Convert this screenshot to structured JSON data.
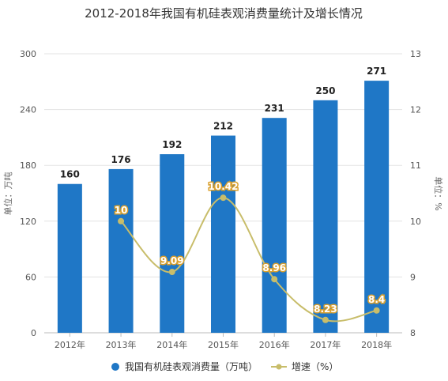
{
  "chart_data": {
    "type": "bar",
    "title": "2012-2018年我国有机硅表观消费量统计及增长情况",
    "categories": [
      "2012年",
      "2013年",
      "2014年",
      "2015年",
      "2016年",
      "2017年",
      "2018年"
    ],
    "series": [
      {
        "name": "我国有机硅表观消费量（万吨）",
        "type": "bar",
        "axis": "left",
        "color": "#1f77c6",
        "values": [
          160,
          176,
          192,
          212,
          231,
          250,
          271
        ]
      },
      {
        "name": "增速（%）",
        "type": "line",
        "axis": "right",
        "color": "#c8bd6a",
        "values": [
          null,
          10,
          9.09,
          10.42,
          8.96,
          8.23,
          8.4
        ],
        "labels": [
          "",
          "10",
          "9.09",
          "10.42",
          "8.96",
          "8.23",
          "8.4"
        ]
      }
    ],
    "y_left": {
      "label": "单位：万吨",
      "ylim": [
        0,
        300
      ],
      "ticks": [
        0,
        60,
        120,
        180,
        240,
        300
      ]
    },
    "y_right": {
      "label": "单位：%",
      "ylim": [
        8,
        13
      ],
      "ticks": [
        8,
        9,
        10,
        11,
        12,
        13
      ]
    },
    "grid": true,
    "legend_position": "bottom"
  }
}
